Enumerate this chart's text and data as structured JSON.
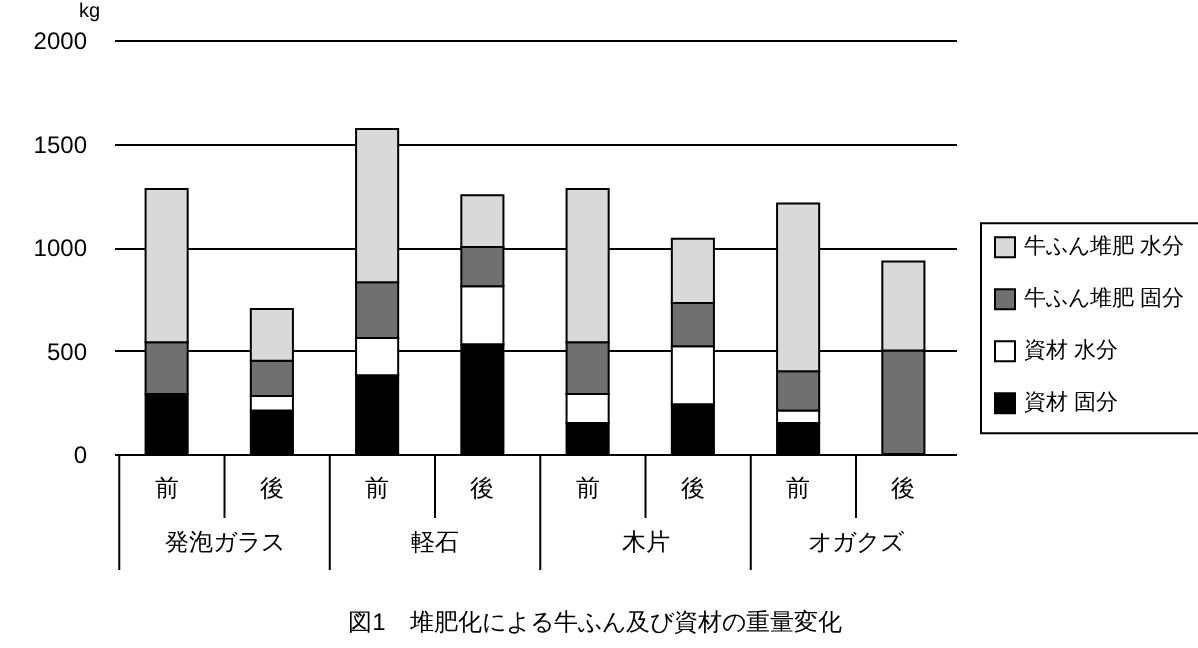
{
  "chart_data": {
    "type": "bar",
    "stacked": true,
    "title": "図1　堆肥化による牛ふん及び資材の重量変化",
    "ylabel": "kg",
    "categories": [
      "前",
      "後",
      "前",
      "後",
      "前",
      "後",
      "前",
      "後"
    ],
    "annotations": [
      "発泡ガラス",
      "軽石",
      "木片",
      "オガクズ"
    ],
    "series": [
      {
        "name": "資材 固分",
        "color": "#000000",
        "values": [
          290,
          210,
          380,
          530,
          150,
          240,
          150,
          0
        ]
      },
      {
        "name": "資材 水分",
        "color": "#ffffff",
        "values": [
          0,
          70,
          180,
          280,
          140,
          280,
          60,
          0
        ]
      },
      {
        "name": "牛ふん堆肥 固分",
        "color": "#707070",
        "values": [
          250,
          170,
          270,
          190,
          250,
          210,
          190,
          500
        ]
      },
      {
        "name": "牛ふん堆肥 水分",
        "color": "#d9d9d9",
        "values": [
          740,
          250,
          740,
          250,
          740,
          310,
          810,
          430
        ]
      }
    ],
    "ylim": [
      0,
      2000
    ],
    "yticks": [
      0,
      500,
      1000,
      1500,
      2000
    ],
    "grid": "y",
    "legend": "right"
  }
}
